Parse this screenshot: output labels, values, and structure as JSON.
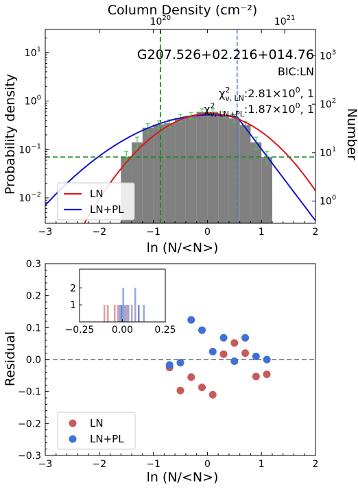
{
  "chart_data": [
    {
      "type": "bar",
      "title": "G207.526+02.216+014.76",
      "top_axis_label": "Column Density (cm⁻²)",
      "top_ticks": [
        {
          "exp": "20",
          "ln_pos": -0.87
        },
        {
          "exp": "21",
          "ln_pos": 1.43
        }
      ],
      "xlabel": "ln (N/<N>)",
      "ylabel": "Probability density",
      "ylabel_right": "Number",
      "xlim": [
        -3,
        2
      ],
      "ylim_log": [
        0.003,
        30
      ],
      "x_ticks": [
        "−3",
        "−2",
        "−1",
        "0",
        "1",
        "2"
      ],
      "y_ticks_left": [
        {
          "v": 0.01,
          "exp": "−2"
        },
        {
          "v": 0.1,
          "exp": "−1"
        },
        {
          "v": 1,
          "exp": "0"
        },
        {
          "v": 10,
          "exp": "1"
        }
      ],
      "y_ticks_right": [
        {
          "v": 0.0086,
          "exp": "0"
        },
        {
          "v": 0.086,
          "exp": "1"
        },
        {
          "v": 0.86,
          "exp": "2"
        },
        {
          "v": 8.6,
          "exp": "3"
        }
      ],
      "bic_text": "BIC:LN",
      "chi_ln": {
        "sym": "χ",
        "sup": "2",
        "sub": "ν, LN",
        "value": ":2.81×10",
        "exp": "0",
        "tail": ", 1"
      },
      "chi_lnpl": {
        "sym": "χ",
        "sup": "2",
        "sub": "ν, LN+PL",
        "value": ":1.87×10",
        "exp": "0",
        "tail": ", 1"
      },
      "histogram": {
        "bin_edges": [
          -1.6,
          -1.4,
          -1.2,
          -1.0,
          -0.8,
          -0.6,
          -0.4,
          -0.2,
          0.0,
          0.2,
          0.4,
          0.6,
          0.8,
          1.0,
          1.2
        ],
        "values": [
          0.07,
          0.14,
          0.28,
          0.33,
          0.35,
          0.45,
          0.5,
          0.6,
          0.6,
          0.52,
          0.44,
          0.32,
          0.14,
          0.07
        ],
        "errors": [
          0.02,
          0.04,
          0.06,
          0.06,
          0.06,
          0.08,
          0.08,
          0.09,
          0.09,
          0.08,
          0.08,
          0.06,
          0.04,
          0.02
        ]
      },
      "lines": {
        "vertical_green": -0.87,
        "vertical_blue": 0.55,
        "horizontal_green": 0.07
      },
      "curves": {
        "LN": {
          "mu": 0.05,
          "sigma": 0.72,
          "amplitude": 0.55
        },
        "LN+PL": {
          "mu": 0.08,
          "sigma": 1.05,
          "amplitude": 0.52,
          "transition": 0.55,
          "pl_slope": -3.4
        }
      },
      "legend": [
        "LN",
        "LN+PL"
      ],
      "legend_loc": "lower-left"
    },
    {
      "type": "scatter",
      "xlabel": "ln (N/<N>)",
      "ylabel": "Residual",
      "xlim": [
        -3,
        2
      ],
      "ylim": [
        -0.3,
        0.3
      ],
      "x_ticks": [
        "−3",
        "−2",
        "−1",
        "0",
        "1",
        "2"
      ],
      "y_ticks": [
        "−0.3",
        "−0.2",
        "−0.1",
        "0.0",
        "0.1",
        "0.2",
        "0.3"
      ],
      "series": [
        {
          "name": "LN",
          "color": "#c85a5a",
          "x": [
            -0.7,
            -0.5,
            -0.3,
            -0.1,
            0.1,
            0.3,
            0.5,
            0.7,
            0.9,
            1.1
          ],
          "y": [
            -0.025,
            -0.097,
            -0.055,
            -0.087,
            -0.11,
            0.017,
            0.052,
            0.02,
            -0.053,
            -0.046
          ]
        },
        {
          "name": "LN+PL",
          "color": "#3f6fd8",
          "x": [
            -0.7,
            -0.5,
            -0.3,
            -0.1,
            0.1,
            0.3,
            0.5,
            0.7,
            0.9,
            1.1
          ],
          "y": [
            -0.017,
            -0.01,
            0.124,
            0.092,
            0.025,
            0.068,
            -0.005,
            0.068,
            0.01,
            0.0
          ]
        }
      ],
      "zero_line": 0.0,
      "legend": [
        "LN",
        "LN+PL"
      ],
      "legend_loc": "lower-left",
      "inset": {
        "type": "histogram",
        "xlim": [
          -0.25,
          0.25
        ],
        "ylim": [
          0,
          3.1
        ],
        "x_ticks": [
          "−0.25",
          "0.00",
          "0.25"
        ],
        "y_ticks": [
          "1",
          "2"
        ],
        "series": [
          {
            "name": "LN",
            "color": "#c85a5a",
            "x": [
              -0.11,
              -0.09,
              -0.05,
              -0.03,
              -0.01,
              0.02,
              0.05,
              0.09
            ]
          },
          {
            "name": "LN+PL",
            "color": "#3f6fd8",
            "x": [
              -0.02,
              -0.01,
              0.0,
              0.0,
              0.01,
              0.03,
              0.07,
              0.07,
              0.09,
              0.12
            ]
          }
        ]
      }
    }
  ]
}
